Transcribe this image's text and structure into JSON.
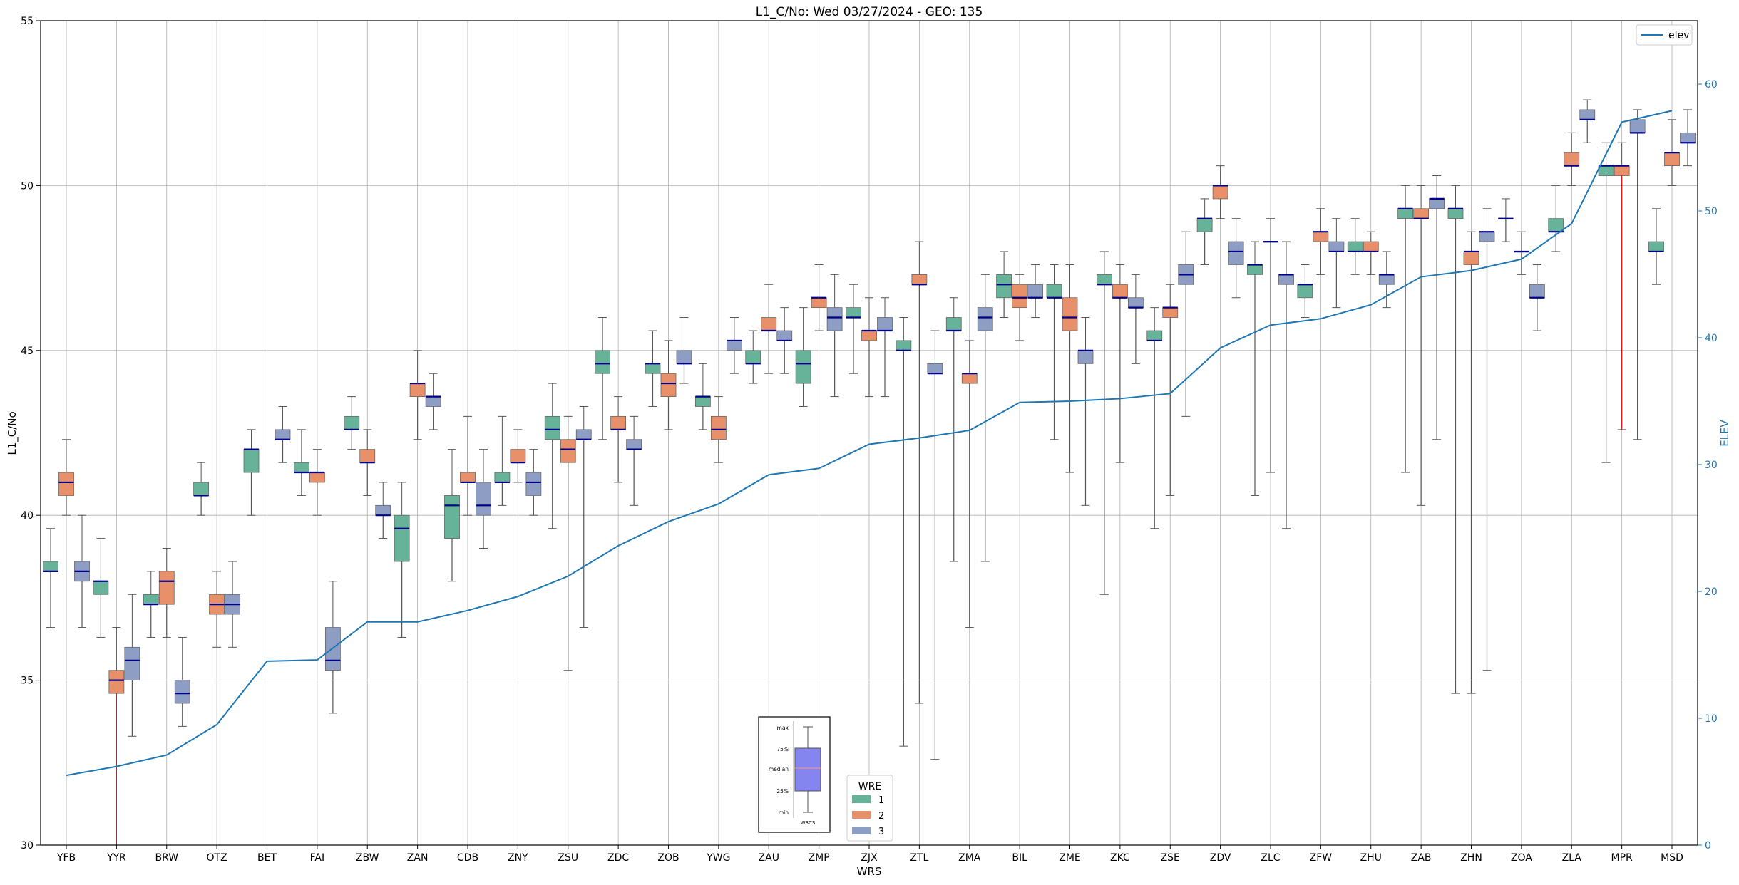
{
  "chart_data": {
    "type": "box",
    "title": "L1_C/No: Wed 03/27/2024 - GEO: 135",
    "xlabel": "WRS",
    "ylabel": "L1_C/No",
    "y2label": "ELEV",
    "ylim": [
      30,
      55
    ],
    "y2lim": [
      0,
      65
    ],
    "yticks": [
      30,
      35,
      40,
      45,
      50,
      55
    ],
    "y2ticks": [
      0,
      10,
      20,
      30,
      40,
      50,
      60
    ],
    "grid": true,
    "colors": {
      "1": "#66b399",
      "2": "#e8906a",
      "3": "#8e9dc4",
      "elev": "#1f77b4",
      "median": "#00008b",
      "outlier": "#ff0000"
    },
    "legend_elev": {
      "label": "elev",
      "placement": "top-right"
    },
    "legend_wre": {
      "title": "WRE",
      "placement": "bottom-center",
      "entries": [
        "1",
        "2",
        "3"
      ]
    },
    "key_box": {
      "labels": [
        "max",
        "75%",
        "median",
        "25%",
        "min"
      ],
      "xlabel": "WRCS"
    },
    "categories": [
      "YFB",
      "YYR",
      "BRW",
      "OTZ",
      "BET",
      "FAI",
      "ZBW",
      "ZAN",
      "CDB",
      "ZNY",
      "ZSU",
      "ZDC",
      "ZOB",
      "YWG",
      "ZAU",
      "ZMP",
      "ZJX",
      "ZTL",
      "ZMA",
      "BIL",
      "ZME",
      "ZKC",
      "ZSE",
      "ZDV",
      "ZLC",
      "ZFW",
      "ZHU",
      "ZAB",
      "ZHN",
      "ZOA",
      "ZLA",
      "MPR",
      "MSD"
    ],
    "elev": [
      5.5,
      6.2,
      7.1,
      9.5,
      14.5,
      14.6,
      17.6,
      17.6,
      18.5,
      19.6,
      21.2,
      23.6,
      25.5,
      26.9,
      29.2,
      29.7,
      31.6,
      32.1,
      32.7,
      34.9,
      35.0,
      35.2,
      35.6,
      39.2,
      41.0,
      41.5,
      42.6,
      44.8,
      45.3,
      46.2,
      49.0,
      57.0,
      57.9
    ],
    "boxes": [
      {
        "station": "YFB",
        "wre": 1,
        "min": 36.6,
        "q1": 38.3,
        "median": 38.3,
        "q3": 38.6,
        "max": 39.6
      },
      {
        "station": "YFB",
        "wre": 2,
        "min": 40.0,
        "q1": 40.6,
        "median": 41.0,
        "q3": 41.3,
        "max": 42.3
      },
      {
        "station": "YFB",
        "wre": 3,
        "min": 36.6,
        "q1": 38.0,
        "median": 38.3,
        "q3": 38.6,
        "max": 40.0
      },
      {
        "station": "YYR",
        "wre": 1,
        "min": 36.3,
        "q1": 37.6,
        "median": 38.0,
        "q3": 38.0,
        "max": 39.3
      },
      {
        "station": "YYR",
        "wre": 2,
        "min": 30.0,
        "q1": 34.6,
        "median": 35.0,
        "q3": 35.3,
        "max": 36.6,
        "outlier": true
      },
      {
        "station": "YYR",
        "wre": 3,
        "min": 33.3,
        "q1": 35.0,
        "median": 35.6,
        "q3": 36.0,
        "max": 37.6
      },
      {
        "station": "BRW",
        "wre": 1,
        "min": 36.3,
        "q1": 37.3,
        "median": 37.3,
        "q3": 37.6,
        "max": 38.3
      },
      {
        "station": "BRW",
        "wre": 2,
        "min": 36.3,
        "q1": 37.3,
        "median": 38.0,
        "q3": 38.3,
        "max": 39.0
      },
      {
        "station": "BRW",
        "wre": 3,
        "min": 33.6,
        "q1": 34.3,
        "median": 34.6,
        "q3": 35.0,
        "max": 36.3
      },
      {
        "station": "OTZ",
        "wre": 1,
        "min": 40.0,
        "q1": 40.6,
        "median": 40.6,
        "q3": 41.0,
        "max": 41.6
      },
      {
        "station": "OTZ",
        "wre": 2,
        "min": 36.0,
        "q1": 37.0,
        "median": 37.3,
        "q3": 37.6,
        "max": 38.3
      },
      {
        "station": "OTZ",
        "wre": 3,
        "min": 36.0,
        "q1": 37.0,
        "median": 37.3,
        "q3": 37.6,
        "max": 38.6
      },
      {
        "station": "BET",
        "wre": 1,
        "min": 40.0,
        "q1": 41.3,
        "median": 42.0,
        "q3": 42.0,
        "max": 42.6
      },
      {
        "station": "BET",
        "wre": 3,
        "min": 41.6,
        "q1": 42.3,
        "median": 42.3,
        "q3": 42.6,
        "max": 43.3
      },
      {
        "station": "FAI",
        "wre": 1,
        "min": 40.6,
        "q1": 41.3,
        "median": 41.3,
        "q3": 41.6,
        "max": 42.6
      },
      {
        "station": "FAI",
        "wre": 2,
        "min": 40.0,
        "q1": 41.0,
        "median": 41.3,
        "q3": 41.3,
        "max": 42.0
      },
      {
        "station": "FAI",
        "wre": 3,
        "min": 34.0,
        "q1": 35.3,
        "median": 35.6,
        "q3": 36.6,
        "max": 38.0
      },
      {
        "station": "ZBW",
        "wre": 1,
        "min": 42.0,
        "q1": 42.6,
        "median": 42.6,
        "q3": 43.0,
        "max": 43.6
      },
      {
        "station": "ZBW",
        "wre": 2,
        "min": 40.6,
        "q1": 41.6,
        "median": 41.6,
        "q3": 42.0,
        "max": 42.6
      },
      {
        "station": "ZBW",
        "wre": 3,
        "min": 39.3,
        "q1": 40.0,
        "median": 40.0,
        "q3": 40.3,
        "max": 41.0
      },
      {
        "station": "ZAN",
        "wre": 1,
        "min": 36.3,
        "q1": 38.6,
        "median": 39.6,
        "q3": 40.0,
        "max": 41.0
      },
      {
        "station": "ZAN",
        "wre": 2,
        "min": 42.3,
        "q1": 43.6,
        "median": 44.0,
        "q3": 44.0,
        "max": 45.0
      },
      {
        "station": "ZAN",
        "wre": 3,
        "min": 42.6,
        "q1": 43.3,
        "median": 43.6,
        "q3": 43.6,
        "max": 44.3
      },
      {
        "station": "CDB",
        "wre": 1,
        "min": 38.0,
        "q1": 39.3,
        "median": 40.3,
        "q3": 40.6,
        "max": 42.0
      },
      {
        "station": "CDB",
        "wre": 2,
        "min": 40.0,
        "q1": 41.0,
        "median": 41.0,
        "q3": 41.3,
        "max": 43.0
      },
      {
        "station": "CDB",
        "wre": 3,
        "min": 39.0,
        "q1": 40.0,
        "median": 40.3,
        "q3": 41.0,
        "max": 42.0
      },
      {
        "station": "ZNY",
        "wre": 1,
        "min": 40.3,
        "q1": 41.0,
        "median": 41.0,
        "q3": 41.3,
        "max": 43.0
      },
      {
        "station": "ZNY",
        "wre": 2,
        "min": 41.0,
        "q1": 41.6,
        "median": 41.6,
        "q3": 42.0,
        "max": 42.6
      },
      {
        "station": "ZNY",
        "wre": 3,
        "min": 40.0,
        "q1": 40.6,
        "median": 41.0,
        "q3": 41.3,
        "max": 42.0
      },
      {
        "station": "ZSU",
        "wre": 1,
        "min": 39.6,
        "q1": 42.3,
        "median": 42.6,
        "q3": 43.0,
        "max": 44.0
      },
      {
        "station": "ZSU",
        "wre": 2,
        "min": 35.3,
        "q1": 41.6,
        "median": 42.0,
        "q3": 42.3,
        "max": 43.0
      },
      {
        "station": "ZSU",
        "wre": 3,
        "min": 36.6,
        "q1": 42.3,
        "median": 42.3,
        "q3": 42.6,
        "max": 43.3
      },
      {
        "station": "ZDC",
        "wre": 1,
        "min": 42.3,
        "q1": 44.3,
        "median": 44.6,
        "q3": 45.0,
        "max": 46.0
      },
      {
        "station": "ZDC",
        "wre": 2,
        "min": 41.0,
        "q1": 42.6,
        "median": 42.6,
        "q3": 43.0,
        "max": 43.6
      },
      {
        "station": "ZDC",
        "wre": 3,
        "min": 40.3,
        "q1": 42.0,
        "median": 42.0,
        "q3": 42.3,
        "max": 43.0
      },
      {
        "station": "ZOB",
        "wre": 1,
        "min": 43.3,
        "q1": 44.3,
        "median": 44.6,
        "q3": 44.6,
        "max": 45.6
      },
      {
        "station": "ZOB",
        "wre": 2,
        "min": 42.6,
        "q1": 43.6,
        "median": 44.0,
        "q3": 44.3,
        "max": 45.3
      },
      {
        "station": "ZOB",
        "wre": 3,
        "min": 44.0,
        "q1": 44.6,
        "median": 44.6,
        "q3": 45.0,
        "max": 46.0
      },
      {
        "station": "YWG",
        "wre": 1,
        "min": 42.6,
        "q1": 43.3,
        "median": 43.6,
        "q3": 43.6,
        "max": 44.6
      },
      {
        "station": "YWG",
        "wre": 2,
        "min": 41.6,
        "q1": 42.3,
        "median": 42.6,
        "q3": 43.0,
        "max": 43.6
      },
      {
        "station": "YWG",
        "wre": 3,
        "min": 44.3,
        "q1": 45.0,
        "median": 45.3,
        "q3": 45.3,
        "max": 46.0
      },
      {
        "station": "ZAU",
        "wre": 1,
        "min": 44.0,
        "q1": 44.6,
        "median": 44.6,
        "q3": 45.0,
        "max": 45.6
      },
      {
        "station": "ZAU",
        "wre": 2,
        "min": 44.3,
        "q1": 45.6,
        "median": 45.6,
        "q3": 46.0,
        "max": 47.0
      },
      {
        "station": "ZAU",
        "wre": 3,
        "min": 44.3,
        "q1": 45.3,
        "median": 45.3,
        "q3": 45.6,
        "max": 46.3
      },
      {
        "station": "ZMP",
        "wre": 1,
        "min": 43.3,
        "q1": 44.0,
        "median": 44.6,
        "q3": 45.0,
        "max": 46.3
      },
      {
        "station": "ZMP",
        "wre": 2,
        "min": 45.6,
        "q1": 46.3,
        "median": 46.6,
        "q3": 46.6,
        "max": 47.6
      },
      {
        "station": "ZMP",
        "wre": 3,
        "min": 43.6,
        "q1": 45.6,
        "median": 46.0,
        "q3": 46.3,
        "max": 47.3
      },
      {
        "station": "ZJX",
        "wre": 1,
        "min": 44.3,
        "q1": 46.0,
        "median": 46.0,
        "q3": 46.3,
        "max": 47.0
      },
      {
        "station": "ZJX",
        "wre": 2,
        "min": 43.6,
        "q1": 45.3,
        "median": 45.6,
        "q3": 45.6,
        "max": 46.6
      },
      {
        "station": "ZJX",
        "wre": 3,
        "min": 43.6,
        "q1": 45.6,
        "median": 45.6,
        "q3": 46.0,
        "max": 46.6
      },
      {
        "station": "ZTL",
        "wre": 1,
        "min": 33.0,
        "q1": 45.0,
        "median": 45.0,
        "q3": 45.3,
        "max": 46.0
      },
      {
        "station": "ZTL",
        "wre": 2,
        "min": 34.3,
        "q1": 47.0,
        "median": 47.0,
        "q3": 47.3,
        "max": 48.3
      },
      {
        "station": "ZTL",
        "wre": 3,
        "min": 32.6,
        "q1": 44.3,
        "median": 44.3,
        "q3": 44.6,
        "max": 45.6
      },
      {
        "station": "ZMA",
        "wre": 1,
        "min": 38.6,
        "q1": 45.6,
        "median": 45.6,
        "q3": 46.0,
        "max": 46.6
      },
      {
        "station": "ZMA",
        "wre": 2,
        "min": 36.6,
        "q1": 44.0,
        "median": 44.3,
        "q3": 44.3,
        "max": 45.3
      },
      {
        "station": "ZMA",
        "wre": 3,
        "min": 38.6,
        "q1": 45.6,
        "median": 46.0,
        "q3": 46.3,
        "max": 47.3
      },
      {
        "station": "BIL",
        "wre": 1,
        "min": 46.0,
        "q1": 46.6,
        "median": 47.0,
        "q3": 47.3,
        "max": 48.0
      },
      {
        "station": "BIL",
        "wre": 2,
        "min": 45.3,
        "q1": 46.3,
        "median": 46.6,
        "q3": 47.0,
        "max": 47.3
      },
      {
        "station": "BIL",
        "wre": 3,
        "min": 46.0,
        "q1": 46.6,
        "median": 46.6,
        "q3": 47.0,
        "max": 47.6
      },
      {
        "station": "ZME",
        "wre": 1,
        "min": 42.3,
        "q1": 46.6,
        "median": 46.6,
        "q3": 47.0,
        "max": 47.6
      },
      {
        "station": "ZME",
        "wre": 2,
        "min": 41.3,
        "q1": 45.6,
        "median": 46.0,
        "q3": 46.6,
        "max": 47.6
      },
      {
        "station": "ZME",
        "wre": 3,
        "min": 40.3,
        "q1": 44.6,
        "median": 45.0,
        "q3": 45.0,
        "max": 46.0
      },
      {
        "station": "ZKC",
        "wre": 1,
        "min": 37.6,
        "q1": 47.0,
        "median": 47.0,
        "q3": 47.3,
        "max": 48.0
      },
      {
        "station": "ZKC",
        "wre": 2,
        "min": 41.6,
        "q1": 46.6,
        "median": 46.6,
        "q3": 47.0,
        "max": 47.6
      },
      {
        "station": "ZKC",
        "wre": 3,
        "min": 44.6,
        "q1": 46.3,
        "median": 46.3,
        "q3": 46.6,
        "max": 47.3
      },
      {
        "station": "ZSE",
        "wre": 1,
        "min": 39.6,
        "q1": 45.3,
        "median": 45.3,
        "q3": 45.6,
        "max": 46.3
      },
      {
        "station": "ZSE",
        "wre": 2,
        "min": 40.6,
        "q1": 46.0,
        "median": 46.3,
        "q3": 46.3,
        "max": 47.0
      },
      {
        "station": "ZSE",
        "wre": 3,
        "min": 43.0,
        "q1": 47.0,
        "median": 47.3,
        "q3": 47.6,
        "max": 48.6
      },
      {
        "station": "ZDV",
        "wre": 1,
        "min": 47.6,
        "q1": 48.6,
        "median": 49.0,
        "q3": 49.0,
        "max": 49.6
      },
      {
        "station": "ZDV",
        "wre": 2,
        "min": 49.0,
        "q1": 49.6,
        "median": 50.0,
        "q3": 50.0,
        "max": 50.6
      },
      {
        "station": "ZDV",
        "wre": 3,
        "min": 46.6,
        "q1": 47.6,
        "median": 48.0,
        "q3": 48.3,
        "max": 49.0
      },
      {
        "station": "ZLC",
        "wre": 1,
        "min": 40.6,
        "q1": 47.3,
        "median": 47.6,
        "q3": 47.6,
        "max": 48.3
      },
      {
        "station": "ZLC",
        "wre": 2,
        "min": 41.3,
        "q1": 48.3,
        "median": 48.3,
        "q3": 48.3,
        "max": 49.0
      },
      {
        "station": "ZLC",
        "wre": 3,
        "min": 39.6,
        "q1": 47.0,
        "median": 47.3,
        "q3": 47.3,
        "max": 48.3
      },
      {
        "station": "ZFW",
        "wre": 1,
        "min": 46.0,
        "q1": 46.6,
        "median": 47.0,
        "q3": 47.0,
        "max": 47.6
      },
      {
        "station": "ZFW",
        "wre": 2,
        "min": 47.3,
        "q1": 48.3,
        "median": 48.6,
        "q3": 48.6,
        "max": 49.3
      },
      {
        "station": "ZFW",
        "wre": 3,
        "min": 46.3,
        "q1": 48.0,
        "median": 48.0,
        "q3": 48.3,
        "max": 49.0
      },
      {
        "station": "ZHU",
        "wre": 1,
        "min": 47.3,
        "q1": 48.0,
        "median": 48.0,
        "q3": 48.3,
        "max": 49.0
      },
      {
        "station": "ZHU",
        "wre": 2,
        "min": 47.3,
        "q1": 48.0,
        "median": 48.0,
        "q3": 48.3,
        "max": 48.6
      },
      {
        "station": "ZHU",
        "wre": 3,
        "min": 46.3,
        "q1": 47.0,
        "median": 47.3,
        "q3": 47.3,
        "max": 48.0
      },
      {
        "station": "ZAB",
        "wre": 1,
        "min": 41.3,
        "q1": 49.0,
        "median": 49.3,
        "q3": 49.3,
        "max": 50.0
      },
      {
        "station": "ZAB",
        "wre": 2,
        "min": 40.3,
        "q1": 49.0,
        "median": 49.0,
        "q3": 49.3,
        "max": 50.0
      },
      {
        "station": "ZAB",
        "wre": 3,
        "min": 42.3,
        "q1": 49.3,
        "median": 49.6,
        "q3": 49.6,
        "max": 50.3
      },
      {
        "station": "ZHN",
        "wre": 1,
        "min": 34.6,
        "q1": 49.0,
        "median": 49.3,
        "q3": 49.3,
        "max": 50.0
      },
      {
        "station": "ZHN",
        "wre": 2,
        "min": 34.6,
        "q1": 47.6,
        "median": 48.0,
        "q3": 48.0,
        "max": 48.6
      },
      {
        "station": "ZHN",
        "wre": 3,
        "min": 35.3,
        "q1": 48.3,
        "median": 48.6,
        "q3": 48.6,
        "max": 49.3
      },
      {
        "station": "ZOA",
        "wre": 1,
        "min": 48.3,
        "q1": 49.0,
        "median": 49.0,
        "q3": 49.0,
        "max": 49.6
      },
      {
        "station": "ZOA",
        "wre": 2,
        "min": 47.3,
        "q1": 48.0,
        "median": 48.0,
        "q3": 48.0,
        "max": 48.6
      },
      {
        "station": "ZOA",
        "wre": 3,
        "min": 45.6,
        "q1": 46.6,
        "median": 46.6,
        "q3": 47.0,
        "max": 47.6
      },
      {
        "station": "ZLA",
        "wre": 1,
        "min": 48.0,
        "q1": 48.6,
        "median": 48.6,
        "q3": 49.0,
        "max": 50.0
      },
      {
        "station": "ZLA",
        "wre": 2,
        "min": 50.0,
        "q1": 50.6,
        "median": 50.6,
        "q3": 51.0,
        "max": 51.6
      },
      {
        "station": "ZLA",
        "wre": 3,
        "min": 51.3,
        "q1": 52.0,
        "median": 52.0,
        "q3": 52.3,
        "max": 52.6
      },
      {
        "station": "MPR",
        "wre": 1,
        "min": 41.6,
        "q1": 50.3,
        "median": 50.6,
        "q3": 50.6,
        "max": 51.3
      },
      {
        "station": "MPR",
        "wre": 2,
        "min": 42.6,
        "q1": 50.3,
        "median": 50.6,
        "q3": 50.6,
        "max": 51.3,
        "outlier": true
      },
      {
        "station": "MPR",
        "wre": 3,
        "min": 42.3,
        "q1": 51.6,
        "median": 51.6,
        "q3": 52.0,
        "max": 52.3
      },
      {
        "station": "MSD",
        "wre": 1,
        "min": 47.0,
        "q1": 48.0,
        "median": 48.0,
        "q3": 48.3,
        "max": 49.3
      },
      {
        "station": "MSD",
        "wre": 2,
        "min": 50.0,
        "q1": 50.6,
        "median": 51.0,
        "q3": 51.0,
        "max": 52.0
      },
      {
        "station": "MSD",
        "wre": 3,
        "min": 50.6,
        "q1": 51.3,
        "median": 51.3,
        "q3": 51.6,
        "max": 52.3
      }
    ]
  }
}
